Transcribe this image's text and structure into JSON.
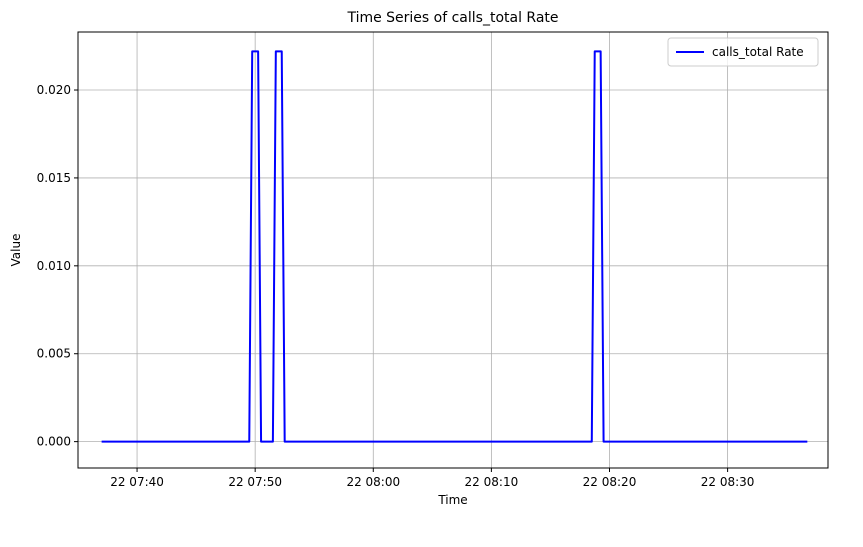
{
  "chart_data": {
    "type": "line",
    "title": "Time Series of calls_total Rate",
    "xlabel": "Time",
    "ylabel": "Value",
    "xlim": [
      "07:35:00",
      "08:38:30"
    ],
    "ylim": [
      -0.0015,
      0.0233
    ],
    "grid": true,
    "legend_position": "top-right",
    "x_ticks": [
      {
        "t": "07:40",
        "label": "22 07:40"
      },
      {
        "t": "07:50",
        "label": "22 07:50"
      },
      {
        "t": "08:00",
        "label": "22 08:00"
      },
      {
        "t": "08:10",
        "label": "22 08:10"
      },
      {
        "t": "08:20",
        "label": "22 08:20"
      },
      {
        "t": "08:30",
        "label": "22 08:30"
      }
    ],
    "y_ticks": [
      {
        "v": 0.0,
        "label": "0.000"
      },
      {
        "v": 0.005,
        "label": "0.005"
      },
      {
        "v": 0.01,
        "label": "0.010"
      },
      {
        "v": 0.015,
        "label": "0.015"
      },
      {
        "v": 0.02,
        "label": "0.020"
      }
    ],
    "series": [
      {
        "name": "calls_total Rate",
        "color": "#0000ff",
        "points": [
          {
            "x": "07:37:00",
            "y": 0.0
          },
          {
            "x": "07:49:30",
            "y": 0.0
          },
          {
            "x": "07:49:45",
            "y": 0.0222
          },
          {
            "x": "07:50:15",
            "y": 0.0222
          },
          {
            "x": "07:50:30",
            "y": 0.0
          },
          {
            "x": "07:51:30",
            "y": 0.0
          },
          {
            "x": "07:51:45",
            "y": 0.0222
          },
          {
            "x": "07:52:15",
            "y": 0.0222
          },
          {
            "x": "07:52:30",
            "y": 0.0
          },
          {
            "x": "08:18:30",
            "y": 0.0
          },
          {
            "x": "08:18:45",
            "y": 0.0222
          },
          {
            "x": "08:19:15",
            "y": 0.0222
          },
          {
            "x": "08:19:30",
            "y": 0.0
          },
          {
            "x": "08:36:45",
            "y": 0.0
          }
        ]
      }
    ]
  }
}
